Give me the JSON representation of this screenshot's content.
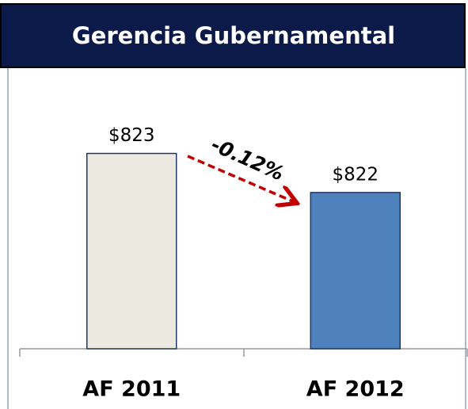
{
  "chart_data": {
    "type": "bar",
    "title": "Gerencia Gubernamental",
    "categories": [
      "AF 2011",
      "AF 2012"
    ],
    "values": [
      823,
      822
    ],
    "value_labels": [
      "$823",
      "$822"
    ],
    "colors": [
      "#ece9e0",
      "#4f81bd"
    ],
    "ylim": [
      818,
      825
    ],
    "annotation": "-0.12%",
    "annotation_color": "#c00000"
  }
}
